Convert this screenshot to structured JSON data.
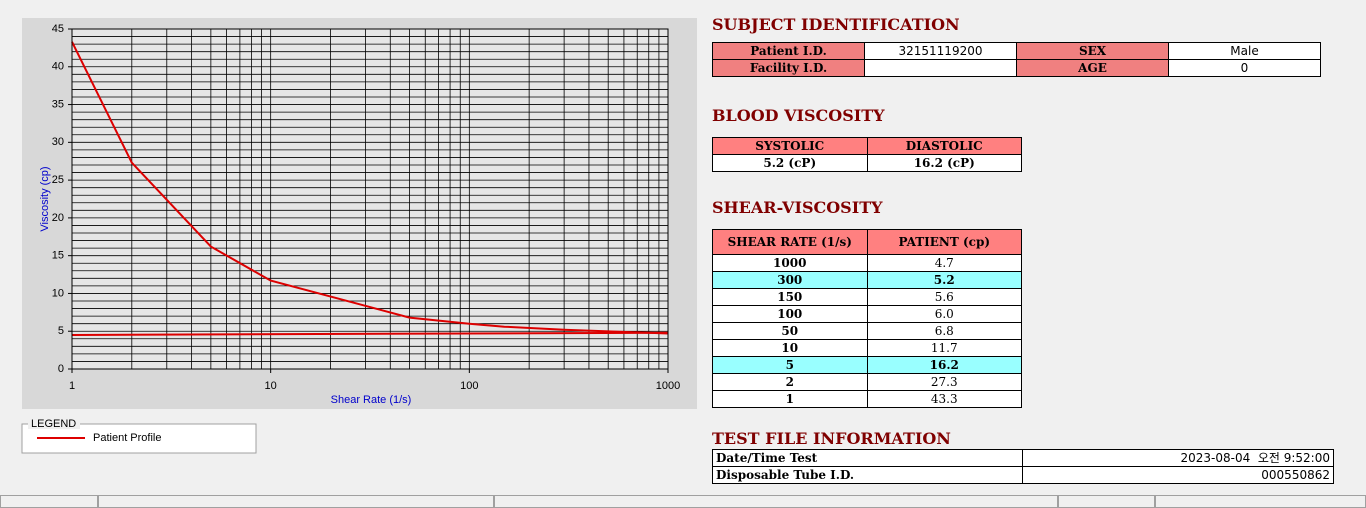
{
  "chart_data": {
    "type": "line",
    "x_label": "Shear Rate (1/s)",
    "y_label": "Viscosity (cp)",
    "xlim": [
      1,
      1000
    ],
    "ylim": [
      0,
      45
    ],
    "xticks": [
      1,
      10,
      100,
      1000
    ],
    "yticks": [
      0,
      5,
      10,
      15,
      20,
      25,
      30,
      35,
      40,
      45
    ],
    "log_x": true,
    "grid": true,
    "legend_title": "LEGEND",
    "series": [
      {
        "name": "Patient Profile",
        "color": "#dd0000",
        "x": [
          1,
          2,
          5,
          10,
          50,
          100,
          150,
          300,
          1000
        ],
        "values": [
          43.3,
          27.3,
          16.2,
          11.7,
          6.8,
          6.0,
          5.6,
          5.2,
          4.7
        ]
      },
      {
        "color": "#dd0000",
        "x": [
          1,
          1000
        ],
        "values": [
          4.5,
          4.8
        ]
      }
    ]
  },
  "subject": {
    "title": "SUBJECT IDENTIFICATION",
    "patient_id_label": "Patient I.D.",
    "patient_id": "32151119200",
    "sex_label": "SEX",
    "sex": "Male",
    "facility_id_label": "Facility I.D.",
    "facility_id": "",
    "age_label": "AGE",
    "age": "0"
  },
  "blood": {
    "title": "BLOOD VISCOSITY",
    "headers": [
      "SYSTOLIC",
      "DIASTOLIC"
    ],
    "values": [
      "5.2 (cP)",
      "16.2 (cP)"
    ]
  },
  "shear": {
    "title": "SHEAR-VISCOSITY",
    "headers": [
      "SHEAR RATE (1/s)",
      "PATIENT (cp)"
    ],
    "rows": [
      {
        "rate": "1000",
        "patient": "4.7",
        "highlight": false
      },
      {
        "rate": "300",
        "patient": "5.2",
        "highlight": true
      },
      {
        "rate": "150",
        "patient": "5.6",
        "highlight": false
      },
      {
        "rate": "100",
        "patient": "6.0",
        "highlight": false
      },
      {
        "rate": "50",
        "patient": "6.8",
        "highlight": false
      },
      {
        "rate": "10",
        "patient": "11.7",
        "highlight": false
      },
      {
        "rate": "5",
        "patient": "16.2",
        "highlight": true
      },
      {
        "rate": "2",
        "patient": "27.3",
        "highlight": false
      },
      {
        "rate": "1",
        "patient": "43.3",
        "highlight": false
      }
    ]
  },
  "test_file": {
    "title": "TEST FILE INFORMATION",
    "date_label": "Date/Time Test",
    "date": "2023-08-04  오전 9:52:00",
    "tube_label": "Disposable Tube I.D.",
    "tube": "000550862"
  }
}
